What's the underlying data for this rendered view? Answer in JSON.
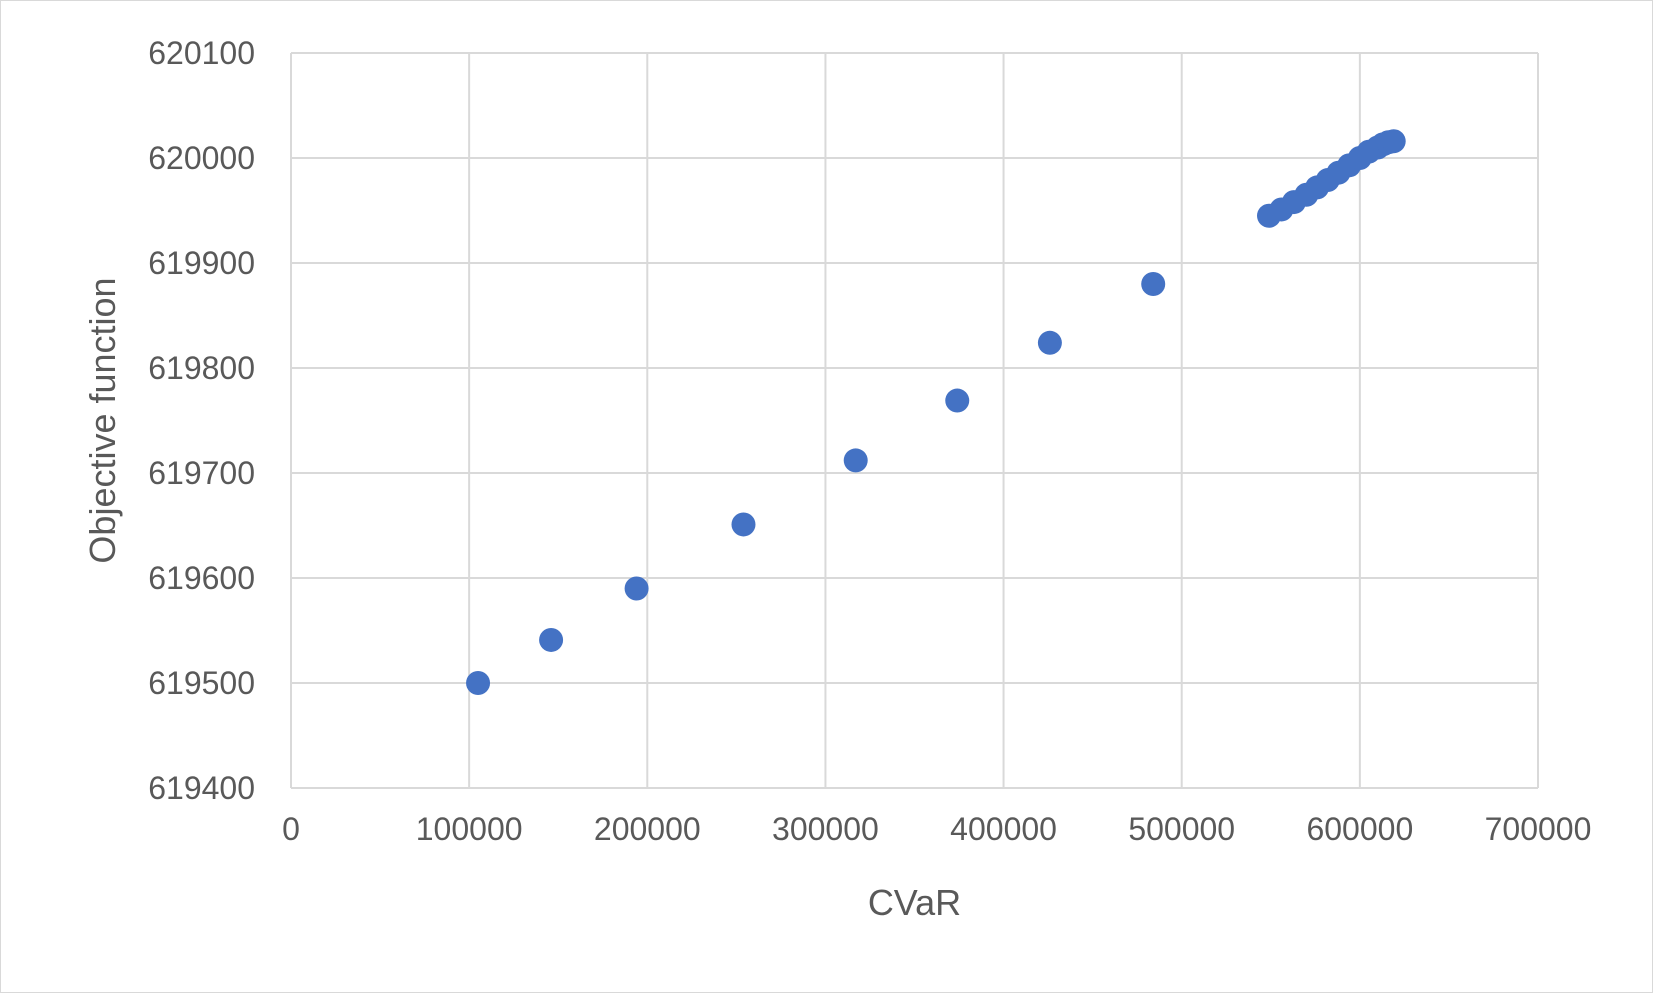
{
  "chart_data": {
    "type": "scatter",
    "xlabel": "CVaR",
    "ylabel": "Objective function",
    "xlim": [
      0,
      700000
    ],
    "ylim": [
      619400,
      620100
    ],
    "x_ticks": [
      "0",
      "100000",
      "200000",
      "300000",
      "400000",
      "500000",
      "600000",
      "700000"
    ],
    "y_ticks": [
      "619400",
      "619500",
      "619600",
      "619700",
      "619800",
      "619900",
      "620000",
      "620100"
    ],
    "grid": true,
    "marker_color": "#4472C4",
    "series": [
      {
        "x": [
          105000,
          146000,
          194000,
          254000,
          317000,
          374000,
          426000,
          484000,
          549000,
          556000,
          563000,
          570000,
          576000,
          582000,
          588000,
          594000,
          600000,
          605000,
          610000,
          613000,
          616000,
          619000
        ],
        "y": [
          619500,
          619541,
          619590,
          619651,
          619712,
          619769,
          619824,
          619880,
          619945,
          619951,
          619958,
          619965,
          619972,
          619979,
          619986,
          619993,
          620000,
          620006,
          620010,
          620013,
          620015,
          620016
        ]
      }
    ]
  }
}
